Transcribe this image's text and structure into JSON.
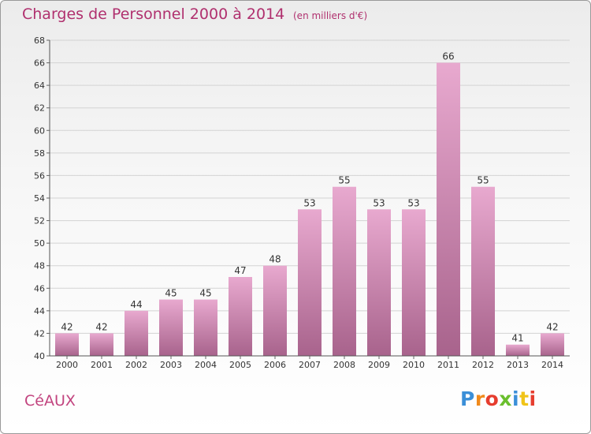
{
  "title": "Charges de Personnel 2000 à 2014",
  "subtitle": "(en milliers d'€)",
  "commune": "CéAUX",
  "logo": {
    "text": "Proxiti",
    "colors": [
      "#3b8fd8",
      "#f08a1c",
      "#e63d2e",
      "#6abf2d",
      "#3b8fd8",
      "#f0c419",
      "#e63d2e"
    ]
  },
  "colors": {
    "bar_light": "#e8a9cf",
    "bar_dark": "#a8638c",
    "title": "#b0306e",
    "grid": "#d3d3d3"
  },
  "chart_data": {
    "type": "bar",
    "categories": [
      "2000",
      "2001",
      "2002",
      "2003",
      "2004",
      "2005",
      "2006",
      "2007",
      "2008",
      "2009",
      "2010",
      "2011",
      "2012",
      "2013",
      "2014"
    ],
    "values": [
      42,
      42,
      44,
      45,
      45,
      47,
      48,
      53,
      55,
      53,
      53,
      66,
      55,
      41,
      42
    ],
    "ylim": [
      40,
      68
    ],
    "yticks": [
      40,
      42,
      44,
      46,
      48,
      50,
      52,
      54,
      56,
      58,
      60,
      62,
      64,
      66,
      68
    ],
    "grid": true,
    "data_labels": true
  }
}
